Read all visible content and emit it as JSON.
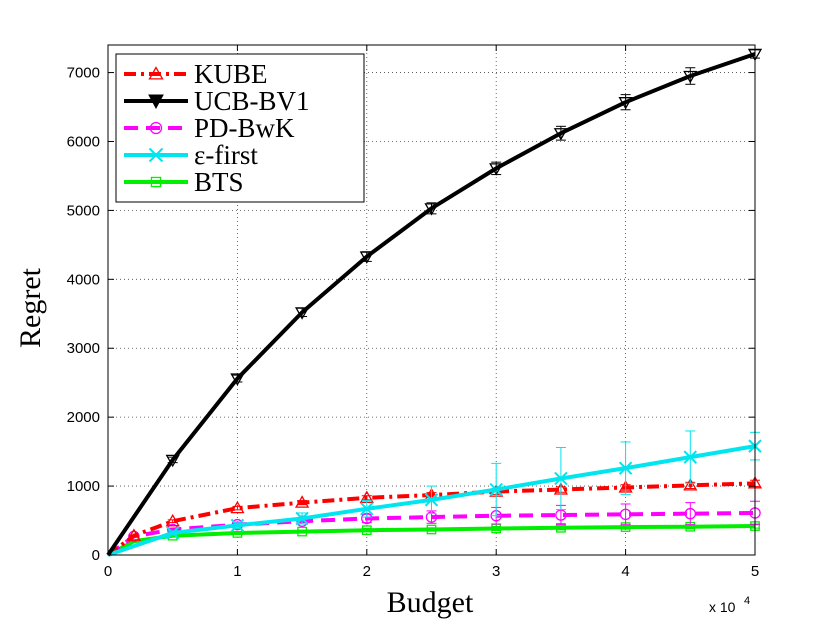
{
  "chart_data": {
    "type": "line",
    "xlabel": "Budget",
    "ylabel": "Regret",
    "x_multiplier_label": "x 10",
    "x_multiplier_exp": "4",
    "xlim": [
      0,
      5
    ],
    "ylim": [
      0,
      7400
    ],
    "xticks": [
      "0",
      "1",
      "2",
      "3",
      "4",
      "5"
    ],
    "yticks": [
      "0",
      "1000",
      "2000",
      "3000",
      "4000",
      "5000",
      "6000",
      "7000"
    ],
    "grid": true,
    "legend_position": "top-left",
    "series": [
      {
        "name": "KUBE",
        "color": "#ff0000",
        "dash": "dashdot",
        "marker": "triangle-up",
        "x": [
          0,
          0.2,
          0.5,
          1,
          1.5,
          2,
          2.5,
          3,
          3.5,
          4,
          4.5,
          5
        ],
        "y": [
          0,
          280,
          490,
          680,
          760,
          830,
          870,
          920,
          950,
          980,
          1010,
          1040
        ],
        "err": [
          0,
          10,
          20,
          25,
          30,
          30,
          35,
          40,
          40,
          40,
          45,
          45
        ]
      },
      {
        "name": "UCB-BV1",
        "color": "#000000",
        "dash": "solid",
        "marker": "triangle-down",
        "x": [
          0,
          0.5,
          1,
          1.5,
          2,
          2.5,
          3,
          3.5,
          4,
          4.5,
          5
        ],
        "y": [
          0,
          1380,
          2560,
          3520,
          4330,
          5030,
          5610,
          6120,
          6570,
          6950,
          7270
        ],
        "err": [
          0,
          40,
          50,
          60,
          70,
          80,
          90,
          100,
          110,
          120,
          60
        ]
      },
      {
        "name": "PD-BwK",
        "color": "#ff00ff",
        "dash": "dashed",
        "marker": "circle",
        "x": [
          0,
          0.2,
          0.5,
          1,
          1.5,
          2,
          2.5,
          3,
          3.5,
          4,
          4.5,
          5
        ],
        "y": [
          0,
          270,
          370,
          440,
          490,
          530,
          550,
          570,
          580,
          590,
          600,
          610
        ],
        "err": [
          0,
          10,
          20,
          30,
          40,
          60,
          90,
          120,
          140,
          150,
          160,
          170
        ]
      },
      {
        "name": "ε-first",
        "color": "#00e5ee",
        "dash": "solid",
        "marker": "x",
        "x": [
          0,
          0.5,
          1,
          1.5,
          2,
          2.5,
          3,
          3.5,
          4,
          4.5,
          5
        ],
        "y": [
          0,
          320,
          430,
          530,
          670,
          800,
          950,
          1110,
          1260,
          1420,
          1580
        ],
        "err": [
          0,
          30,
          50,
          80,
          120,
          200,
          380,
          450,
          380,
          380,
          200
        ]
      },
      {
        "name": "BTS",
        "color": "#00ee00",
        "dash": "solid",
        "marker": "square",
        "x": [
          0,
          0.2,
          0.5,
          1,
          1.5,
          2,
          2.5,
          3,
          3.5,
          4,
          4.5,
          5
        ],
        "y": [
          0,
          200,
          280,
          320,
          340,
          360,
          370,
          385,
          395,
          405,
          410,
          420
        ],
        "err": [
          0,
          10,
          15,
          20,
          20,
          25,
          25,
          30,
          30,
          30,
          30,
          30
        ]
      }
    ]
  }
}
